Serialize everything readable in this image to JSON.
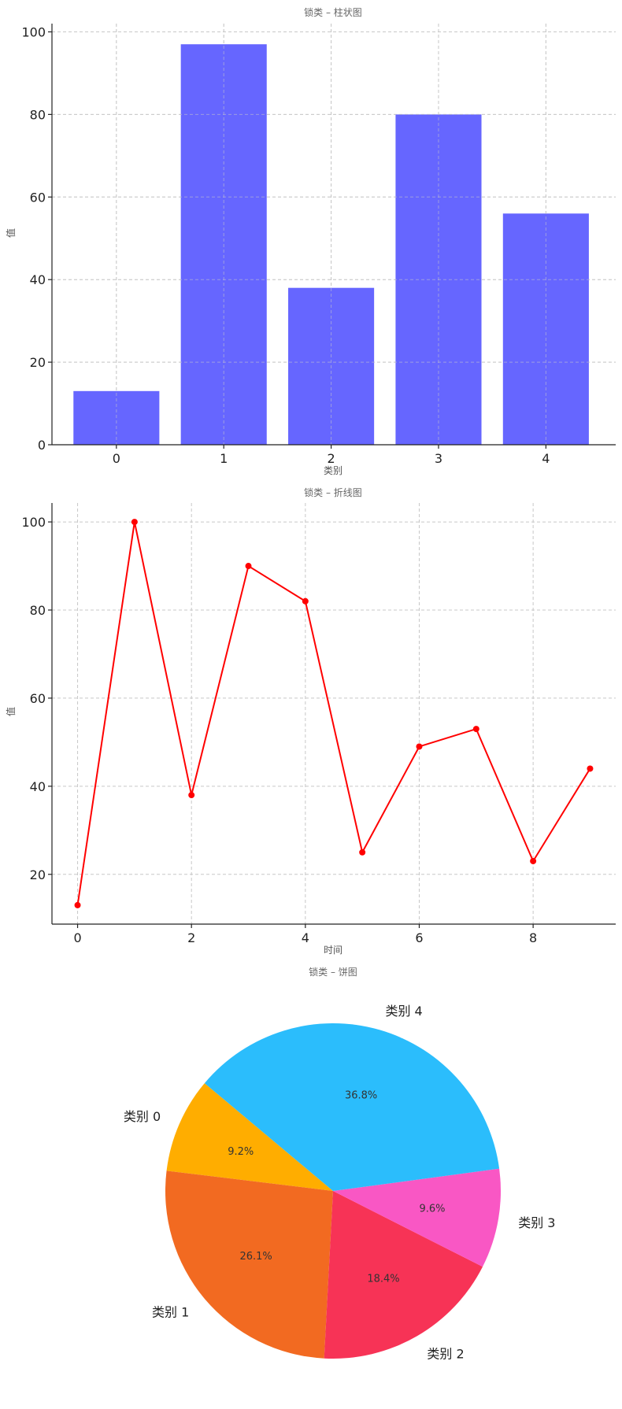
{
  "chart_data": [
    {
      "type": "bar",
      "title": "锁类 – 柱状图",
      "xlabel": "类别",
      "ylabel": "值",
      "categories": [
        "0",
        "1",
        "2",
        "3",
        "4"
      ],
      "values": [
        13,
        97,
        38,
        80,
        56
      ],
      "ylim": [
        0,
        102
      ],
      "yticks": [
        0,
        20,
        40,
        60,
        80,
        100
      ],
      "grid": true,
      "color": "#6666ff"
    },
    {
      "type": "line",
      "title": "锁类 – 折线图",
      "xlabel": "时间",
      "ylabel": "值",
      "x": [
        0,
        1,
        2,
        3,
        4,
        5,
        6,
        7,
        8,
        9
      ],
      "values": [
        13,
        100,
        38,
        90,
        82,
        25,
        49,
        53,
        23,
        44
      ],
      "xlim": [
        -0.45,
        9.45
      ],
      "ylim": [
        8.7,
        104.3
      ],
      "xticks": [
        0,
        2,
        4,
        6,
        8
      ],
      "yticks": [
        20,
        40,
        60,
        80,
        100
      ],
      "grid": true,
      "color": "#ff0000"
    },
    {
      "type": "pie",
      "title": "锁类 – 饼图",
      "labels": [
        "类别 0",
        "类别 1",
        "类别 2",
        "类别 3",
        "类别 4"
      ],
      "values": [
        9.2,
        26.1,
        18.4,
        9.6,
        36.8
      ],
      "pct_labels": [
        "9.2%",
        "26.1%",
        "18.4%",
        "9.6%",
        "36.8%"
      ],
      "colors": [
        "#ffad00",
        "#f26a21",
        "#f73356",
        "#f957c4",
        "#2bbdfc"
      ],
      "start_angle_deg": 140,
      "direction": "counterclockwise"
    }
  ]
}
